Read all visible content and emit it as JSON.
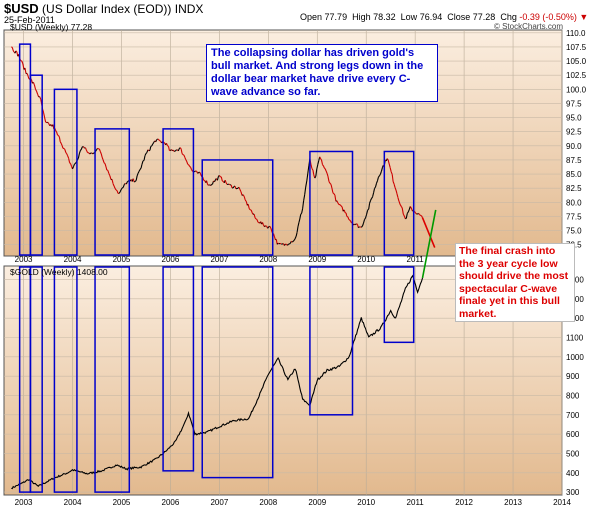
{
  "header": {
    "symbol": "$USD",
    "name": "(US Dollar Index (EOD))",
    "exchange": "INDX",
    "date": "25-Feb-2011",
    "open_label": "Open",
    "open": "77.79",
    "high_label": "High",
    "high": "78.32",
    "low_label": "Low",
    "low": "76.94",
    "close_label": "Close",
    "close": "77.28",
    "chg_label": "Chg",
    "chg": "-0.39 (-0.50%)",
    "chg_arrow": "▼",
    "credit": "© StockCharts.com"
  },
  "annotations": {
    "top": "The collapsing dollar has driven gold's bull market. And strong legs down in the dollar bear market have drive every C-wave advance so far.",
    "right": "The final crash into the 3 year cycle low should drive the most spectacular C-wave finale yet in this bull market."
  },
  "colors": {
    "panel_bg_light": "#fbeee0",
    "panel_bg_dark": "#e2b98e",
    "box": "#0000cc",
    "dollar_up": "#000000",
    "dollar_down": "#cc0000",
    "projection_up": "#009900",
    "projection_down": "#dd0000"
  },
  "chart_data": [
    {
      "type": "line",
      "legend": "$USD (Weekly) 77.28",
      "series": [
        {
          "x": [
            2002.75,
            2002.9,
            2003.05,
            2003.2,
            2003.35,
            2003.45,
            2003.6,
            2003.75,
            2003.9,
            2004.0,
            2004.1,
            2004.2,
            2004.35,
            2004.55,
            2004.7,
            2004.85,
            2004.95,
            2005.1,
            2005.3,
            2005.5,
            2005.7,
            2005.9,
            2006.0,
            2006.2,
            2006.45,
            2006.6,
            2006.8,
            2007.0,
            2007.2,
            2007.4,
            2007.55,
            2007.75,
            2007.9,
            2008.05,
            2008.2,
            2008.35,
            2008.55,
            2008.7,
            2008.85,
            2008.95,
            2009.05,
            2009.2,
            2009.4,
            2009.55,
            2009.7,
            2009.9,
            2010.05,
            2010.25,
            2010.43,
            2010.55,
            2010.65,
            2010.8,
            2010.9,
            2011.05,
            2011.15
          ],
          "y": [
            107.5,
            106.0,
            103.0,
            101.0,
            98.0,
            94.0,
            93.5,
            91.0,
            88.0,
            86.0,
            87.5,
            90.0,
            88.5,
            89.5,
            86.0,
            83.0,
            81.5,
            83.5,
            84.0,
            88.5,
            91.0,
            90.5,
            89.0,
            89.5,
            85.5,
            85.0,
            83.0,
            84.5,
            83.0,
            82.5,
            80.0,
            77.0,
            76.0,
            75.5,
            72.5,
            72.5,
            73.5,
            79.0,
            87.5,
            84.0,
            88.0,
            85.0,
            80.0,
            78.5,
            76.5,
            75.5,
            79.0,
            84.5,
            88.0,
            84.0,
            81.0,
            77.0,
            79.0,
            78.0,
            77.28
          ]
        }
      ],
      "projection": {
        "x": [
          2011.15,
          2011.4
        ],
        "y": [
          77.28,
          72.0
        ]
      },
      "x_ticks": [
        "2003",
        "2004",
        "2005",
        "2006",
        "2007",
        "2008",
        "2009",
        "2010",
        "2011",
        "2012",
        "2013",
        "2014"
      ],
      "y_ticks": [
        "72.5",
        "75.0",
        "77.5",
        "80.0",
        "82.5",
        "85.0",
        "87.5",
        "90.0",
        "92.5",
        "95.0",
        "97.5",
        "100.0",
        "102.5",
        "105.0",
        "107.5",
        "110.0"
      ],
      "ylim": [
        70.5,
        110.5
      ]
    },
    {
      "type": "line",
      "legend": "$GOLD (Weekly) 1408.00",
      "series": [
        {
          "x": [
            2002.75,
            2003.0,
            2003.1,
            2003.3,
            2003.6,
            2003.9,
            2004.0,
            2004.3,
            2004.6,
            2004.9,
            2005.1,
            2005.4,
            2005.7,
            2005.9,
            2006.1,
            2006.3,
            2006.37,
            2006.5,
            2006.75,
            2007.0,
            2007.3,
            2007.6,
            2007.85,
            2008.0,
            2008.2,
            2008.4,
            2008.55,
            2008.7,
            2008.85,
            2009.0,
            2009.2,
            2009.45,
            2009.65,
            2009.9,
            2010.05,
            2010.3,
            2010.5,
            2010.6,
            2010.8,
            2010.95,
            2011.05,
            2011.15
          ],
          "y": [
            320,
            350,
            365,
            330,
            370,
            400,
            415,
            395,
            410,
            440,
            420,
            430,
            470,
            510,
            560,
            660,
            710,
            600,
            610,
            640,
            670,
            680,
            820,
            910,
            990,
            880,
            940,
            780,
            750,
            880,
            930,
            950,
            1000,
            1200,
            1100,
            1150,
            1240,
            1200,
            1350,
            1420,
            1340,
            1408
          ]
        }
      ],
      "projection": {
        "x": [
          2011.15,
          2011.42
        ],
        "y": [
          1408,
          1760
        ]
      },
      "x_ticks": [
        "2003",
        "2004",
        "2005",
        "2006",
        "2007",
        "2008",
        "2009",
        "2010",
        "2011",
        "2012",
        "2013",
        "2014"
      ],
      "y_ticks": [
        "300",
        "400",
        "500",
        "600",
        "700",
        "800",
        "900",
        "1000",
        "1100",
        "1200",
        "1300",
        "1400"
      ],
      "ylim": [
        285,
        1470
      ]
    }
  ],
  "cycle_boxes": [
    {
      "start": 2002.92,
      "end": 2003.14,
      "usd_top": 108.0,
      "gold_bottom": 300
    },
    {
      "start": 2003.14,
      "end": 2003.38,
      "usd_top": 102.5,
      "gold_bottom": 300
    },
    {
      "start": 2003.63,
      "end": 2004.09,
      "usd_top": 100.0,
      "gold_bottom": 300
    },
    {
      "start": 2004.46,
      "end": 2005.16,
      "usd_top": 93.0,
      "gold_bottom": 300
    },
    {
      "start": 2005.85,
      "end": 2006.47,
      "usd_top": 93.0,
      "gold_bottom": 410
    },
    {
      "start": 2006.65,
      "end": 2008.09,
      "usd_top": 87.5,
      "gold_bottom": 375
    },
    {
      "start": 2008.85,
      "end": 2009.72,
      "usd_top": 89.0,
      "gold_bottom": 700
    },
    {
      "start": 2010.37,
      "end": 2010.97,
      "usd_top": 89.0,
      "gold_bottom": 1075
    }
  ]
}
